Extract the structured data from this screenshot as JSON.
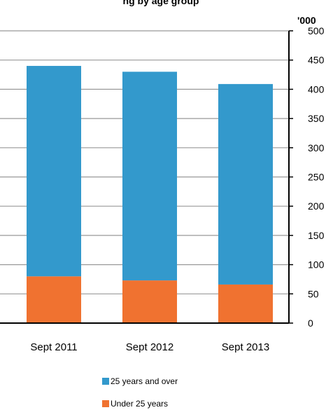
{
  "chart_data": {
    "type": "bar",
    "stacked": true,
    "title": "ng                         by age group",
    "unit_label": "'000",
    "categories": [
      "Sept 2011",
      "Sept 2012",
      "Sept 2013"
    ],
    "series": [
      {
        "name": "Under 25 years",
        "color": "#F07230",
        "values": [
          80,
          73,
          66
        ]
      },
      {
        "name": "25 years and over",
        "color": "#3399CC",
        "values": [
          360,
          357,
          343
        ]
      }
    ],
    "ylim": [
      0,
      500
    ],
    "yticks": [
      0,
      50,
      100,
      150,
      200,
      250,
      300,
      350,
      400,
      450,
      500
    ],
    "y_axis_position": "right",
    "grid": true,
    "legend_position": "bottom",
    "colors": {
      "grid": "#999999",
      "axis": "#000000"
    }
  }
}
